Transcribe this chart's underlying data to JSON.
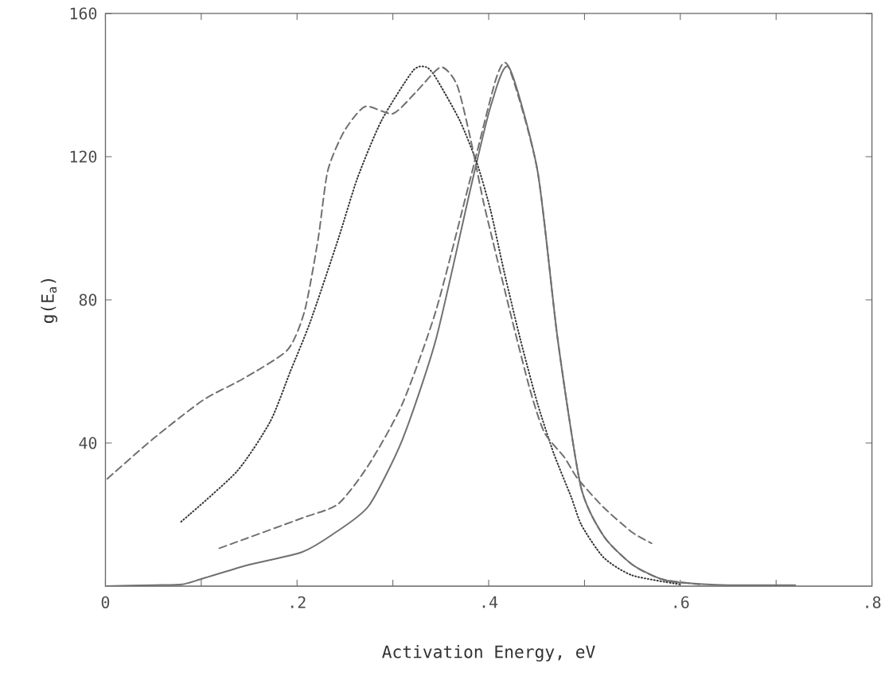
{
  "chart_data": {
    "type": "line",
    "xlabel": "Activation Energy, eV",
    "ylabel": "g(E$_{a}$)",
    "xlim": [
      0,
      0.8
    ],
    "ylim": [
      0,
      160
    ],
    "xticks": [
      0,
      {
        "value": 0.1,
        "label": null
      },
      {
        "value": 0.2,
        "label": ".2"
      },
      {
        "value": 0.3,
        "label": null
      },
      {
        "value": 0.4,
        "label": ".4"
      },
      {
        "value": 0.5,
        "label": null
      },
      {
        "value": 0.6,
        "label": ".6"
      },
      {
        "value": 0.7,
        "label": null
      },
      {
        "value": 0.8,
        "label": ".8"
      }
    ],
    "yticks": [
      40,
      80,
      120,
      160
    ],
    "grid": false,
    "marker": "none",
    "series": [
      {
        "color": "#707070",
        "line_style": "solid",
        "x": [
          0,
          0.05,
          0.08,
          0.1,
          0.15,
          0.205,
          0.24,
          0.275,
          0.31,
          0.345,
          0.381,
          0.402,
          0.421,
          0.451,
          0.472,
          0.496,
          0.52,
          0.55,
          0.58,
          0.6,
          0.65,
          0.72
        ],
        "values": [
          0,
          0.3,
          0.5,
          2,
          6,
          9.5,
          15,
          22.5,
          41,
          69,
          111,
          134,
          145,
          116,
          69,
          28,
          14,
          6,
          2,
          1,
          0.3,
          0.3
        ]
      },
      {
        "color": "#707070",
        "line_style": "dashed",
        "x": [
          0.119,
          0.205,
          0.243,
          0.275,
          0.31,
          0.345,
          0.381,
          0.408,
          0.421,
          0.451,
          0.472,
          0.496,
          0.52,
          0.55,
          0.58,
          0.62
        ],
        "values": [
          10.6,
          19,
          23,
          34,
          51,
          77,
          114,
          142,
          145,
          116,
          69,
          28,
          14,
          6,
          2,
          0.5
        ]
      },
      {
        "color": "#333333",
        "line_style": "dotted",
        "x": [
          0.079,
          0.137,
          0.172,
          0.193,
          0.214,
          0.243,
          0.263,
          0.288,
          0.321,
          0.335,
          0.345,
          0.37,
          0.388,
          0.402,
          0.416,
          0.433,
          0.451,
          0.468,
          0.486,
          0.497,
          0.52,
          0.55,
          0.6
        ],
        "values": [
          18,
          32,
          46,
          60,
          74,
          97,
          114,
          130,
          144,
          145,
          142,
          130,
          118,
          105,
          88,
          69,
          51,
          37,
          25,
          17,
          8,
          3,
          0.5
        ]
      },
      {
        "color": "#707070",
        "line_style": "dashed",
        "x": [
          0.002,
          0.049,
          0.102,
          0.144,
          0.19,
          0.208,
          0.222,
          0.232,
          0.249,
          0.271,
          0.3,
          0.324,
          0.35,
          0.367,
          0.381,
          0.394,
          0.402,
          0.422,
          0.443,
          0.458,
          0.479,
          0.493,
          0.52,
          0.55,
          0.57
        ],
        "values": [
          30,
          41,
          52,
          58,
          66,
          77,
          97,
          116,
          127,
          134,
          132,
          138,
          145,
          140,
          125,
          108,
          99,
          77,
          55,
          43,
          36,
          30,
          22,
          15,
          12
        ]
      }
    ]
  }
}
